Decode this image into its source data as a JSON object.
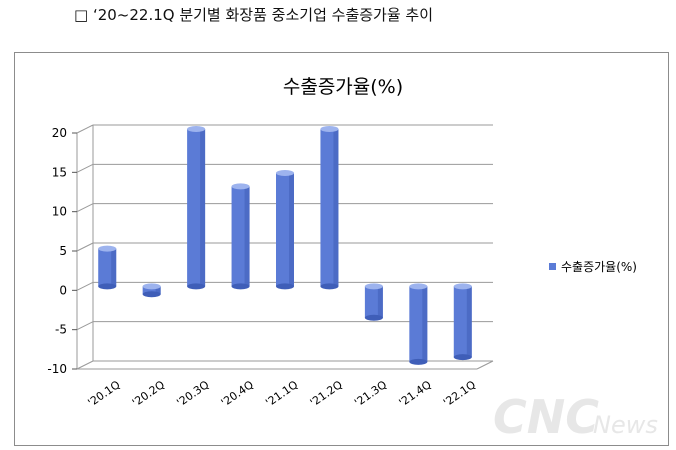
{
  "heading": "□ ‘20~22.1Q 분기별 화장품 중소기업 수출증가율 추이",
  "watermark": {
    "main": "CNC",
    "sub": "News"
  },
  "colors": {
    "bar": "#5b7bd6",
    "bar_top": "#9db3ee",
    "bar_dark": "#3f5eb8",
    "grid": "#9a9a9a"
  },
  "chart_data": {
    "type": "bar",
    "title": "수출증가율(%)",
    "xlabel": "",
    "ylabel": "",
    "categories": [
      "'20.1Q",
      "'20.2Q",
      "'20.3Q",
      "'20.4Q",
      "'21.1Q",
      "'21.2Q",
      "'21.3Q",
      "'21.4Q",
      "'22.1Q"
    ],
    "series": [
      {
        "name": "수출증가율(%)",
        "values": [
          4.8,
          -1.0,
          20.0,
          12.7,
          14.4,
          20.0,
          -4.0,
          -9.6,
          -9.0
        ]
      }
    ],
    "ylim": [
      -10,
      20
    ],
    "yticks": [
      20,
      15,
      10,
      5,
      0,
      -5,
      -10
    ],
    "grid": true,
    "legend_position": "right"
  }
}
